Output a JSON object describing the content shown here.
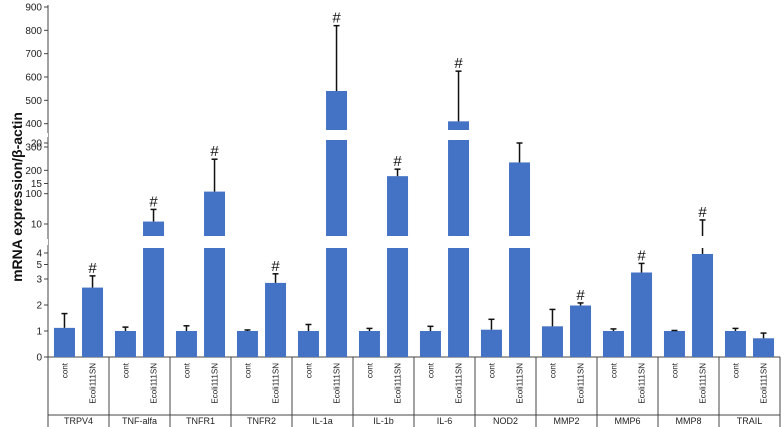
{
  "chart_data": {
    "type": "bar",
    "ylabel": "mRNA expression/β-actin",
    "bar_color": "#4472C4",
    "error_color": "#111111",
    "annotation_symbol": "#",
    "y_axis_break": true,
    "ylim_panels": [
      [
        0,
        4
      ],
      [
        0,
        20
      ],
      [
        0,
        900
      ]
    ],
    "ticks_panels": [
      [
        "0",
        "1",
        "2",
        "3",
        "4"
      ],
      [
        "5",
        "10",
        "15",
        "20"
      ],
      [
        "100",
        "200",
        "300",
        "400",
        "500",
        "600",
        "700",
        "800",
        "900"
      ]
    ],
    "groups": [
      {
        "name": "TRPV4",
        "bars": [
          {
            "label": "cont",
            "value": 1.12,
            "error": 0.55,
            "sig": false
          },
          {
            "label": "Ecoli111SN",
            "value": 2.67,
            "error": 0.45,
            "sig": true
          }
        ]
      },
      {
        "name": "TNF-alfa",
        "bars": [
          {
            "label": "cont",
            "value": 1.0,
            "error": 0.15,
            "sig": false
          },
          {
            "label": "Ecoli111SN",
            "value": 10.3,
            "error": 1.5,
            "sig": true
          }
        ]
      },
      {
        "name": "TNFR1",
        "bars": [
          {
            "label": "cont",
            "value": 1.0,
            "error": 0.2,
            "sig": false
          },
          {
            "label": "Ecoli111SN",
            "value": 14.0,
            "error": 4.0,
            "sig": true
          }
        ]
      },
      {
        "name": "TNFR2",
        "bars": [
          {
            "label": "cont",
            "value": 1.0,
            "error": 0.04,
            "sig": false
          },
          {
            "label": "Ecoli111SN",
            "value": 2.85,
            "error": 0.35,
            "sig": true
          }
        ]
      },
      {
        "name": "IL-1a",
        "bars": [
          {
            "label": "cont",
            "value": 1.0,
            "error": 0.25,
            "sig": false
          },
          {
            "label": "Ecoli111SN",
            "value": 540,
            "error": 280,
            "sig": true
          }
        ]
      },
      {
        "name": "IL-1b",
        "bars": [
          {
            "label": "cont",
            "value": 1.0,
            "error": 0.1,
            "sig": false
          },
          {
            "label": "Ecoli111SN",
            "value": 175,
            "error": 30,
            "sig": true
          }
        ]
      },
      {
        "name": "IL-6",
        "bars": [
          {
            "label": "cont",
            "value": 1.0,
            "error": 0.18,
            "sig": false
          },
          {
            "label": "Ecoli111SN",
            "value": 410,
            "error": 215,
            "sig": true
          }
        ]
      },
      {
        "name": "NOD2",
        "bars": [
          {
            "label": "cont",
            "value": 1.05,
            "error": 0.4,
            "sig": false
          },
          {
            "label": "Ecoli111SN",
            "value": 17.6,
            "error": 2.4,
            "sig": true
          }
        ]
      },
      {
        "name": "MMP2",
        "bars": [
          {
            "label": "cont",
            "value": 1.18,
            "error": 0.65,
            "sig": false
          },
          {
            "label": "Ecoli111SN",
            "value": 1.98,
            "error": 0.1,
            "sig": true
          }
        ]
      },
      {
        "name": "MMP6",
        "bars": [
          {
            "label": "cont",
            "value": 1.0,
            "error": 0.08,
            "sig": false
          },
          {
            "label": "Ecoli111SN",
            "value": 3.25,
            "error": 0.35,
            "sig": true
          }
        ]
      },
      {
        "name": "MMP8",
        "bars": [
          {
            "label": "cont",
            "value": 1.0,
            "error": 0.02,
            "sig": false
          },
          {
            "label": "Ecoli111SN",
            "value": 6.3,
            "error": 4.2,
            "sig": true
          }
        ]
      },
      {
        "name": "TRAIL",
        "bars": [
          {
            "label": "cont",
            "value": 1.0,
            "error": 0.1,
            "sig": false
          },
          {
            "label": "Ecoli111SN",
            "value": 0.72,
            "error": 0.2,
            "sig": false
          }
        ]
      }
    ]
  }
}
